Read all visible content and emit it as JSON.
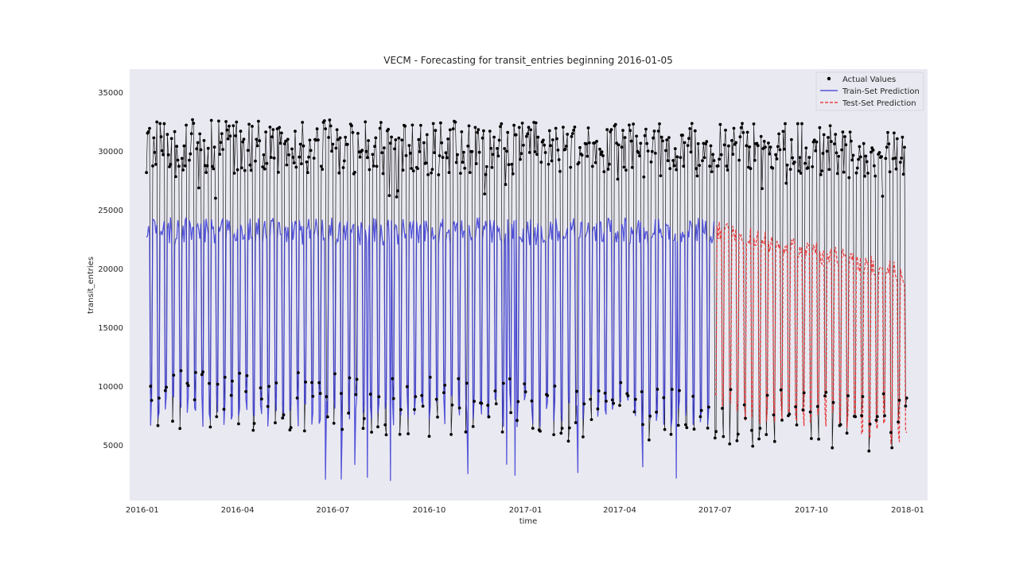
{
  "chart_data": {
    "type": "line",
    "title": "VECM - Forecasting for transit_entries beginning 2016-01-05",
    "xlabel": "time",
    "ylabel": "transit_entries",
    "x_range": [
      "2015-12-20",
      "2018-01-20"
    ],
    "ylim": [
      300,
      37000
    ],
    "x_ticks": [
      {
        "date": "2016-01-01",
        "label": "2016-01"
      },
      {
        "date": "2016-04-01",
        "label": "2016-04"
      },
      {
        "date": "2016-07-01",
        "label": "2016-07"
      },
      {
        "date": "2016-10-01",
        "label": "2016-10"
      },
      {
        "date": "2017-01-01",
        "label": "2017-01"
      },
      {
        "date": "2017-04-01",
        "label": "2017-04"
      },
      {
        "date": "2017-07-01",
        "label": "2017-07"
      },
      {
        "date": "2017-10-01",
        "label": "2017-10"
      },
      {
        "date": "2018-01-01",
        "label": "2018-01"
      }
    ],
    "y_ticks": [
      5000,
      10000,
      15000,
      20000,
      25000,
      30000,
      35000
    ],
    "grid": false,
    "legend_position": "top-right",
    "series": [
      {
        "name": "Actual Values",
        "style": "points",
        "color": "#000000",
        "pattern": "daily values, weekdays about 28000-35000, weekends about 5000-13000, holiday dips near 4000-5000",
        "start": "2016-01-05",
        "end": "2017-12-31",
        "weekday_level": 30500,
        "weekend_level": 9000,
        "late_weekday_level": 30000,
        "late_weekend_level": 7000,
        "y_min": 4000,
        "y_max": 35200
      },
      {
        "name": "Train-Set Prediction",
        "style": "solid",
        "color": "#3b3bd6",
        "start": "2016-01-05",
        "end": "2017-06-30",
        "weekday_level": 23200,
        "weekend_level": 8000,
        "y_min": 1900,
        "y_max": 25900
      },
      {
        "name": "Test-Set Prediction",
        "style": "dashed",
        "color": "#e8302f",
        "start": "2017-07-01",
        "end": "2017-12-31",
        "weekday_level_start": 23500,
        "weekday_level_end": 19500,
        "weekend_level_start": 8500,
        "weekend_level_end": 6000,
        "y_min": 4200,
        "y_max": 25500
      }
    ]
  },
  "colors": {
    "plot_background": "#e9e9f1",
    "figure_background": "#ffffff",
    "text": "#262626"
  }
}
